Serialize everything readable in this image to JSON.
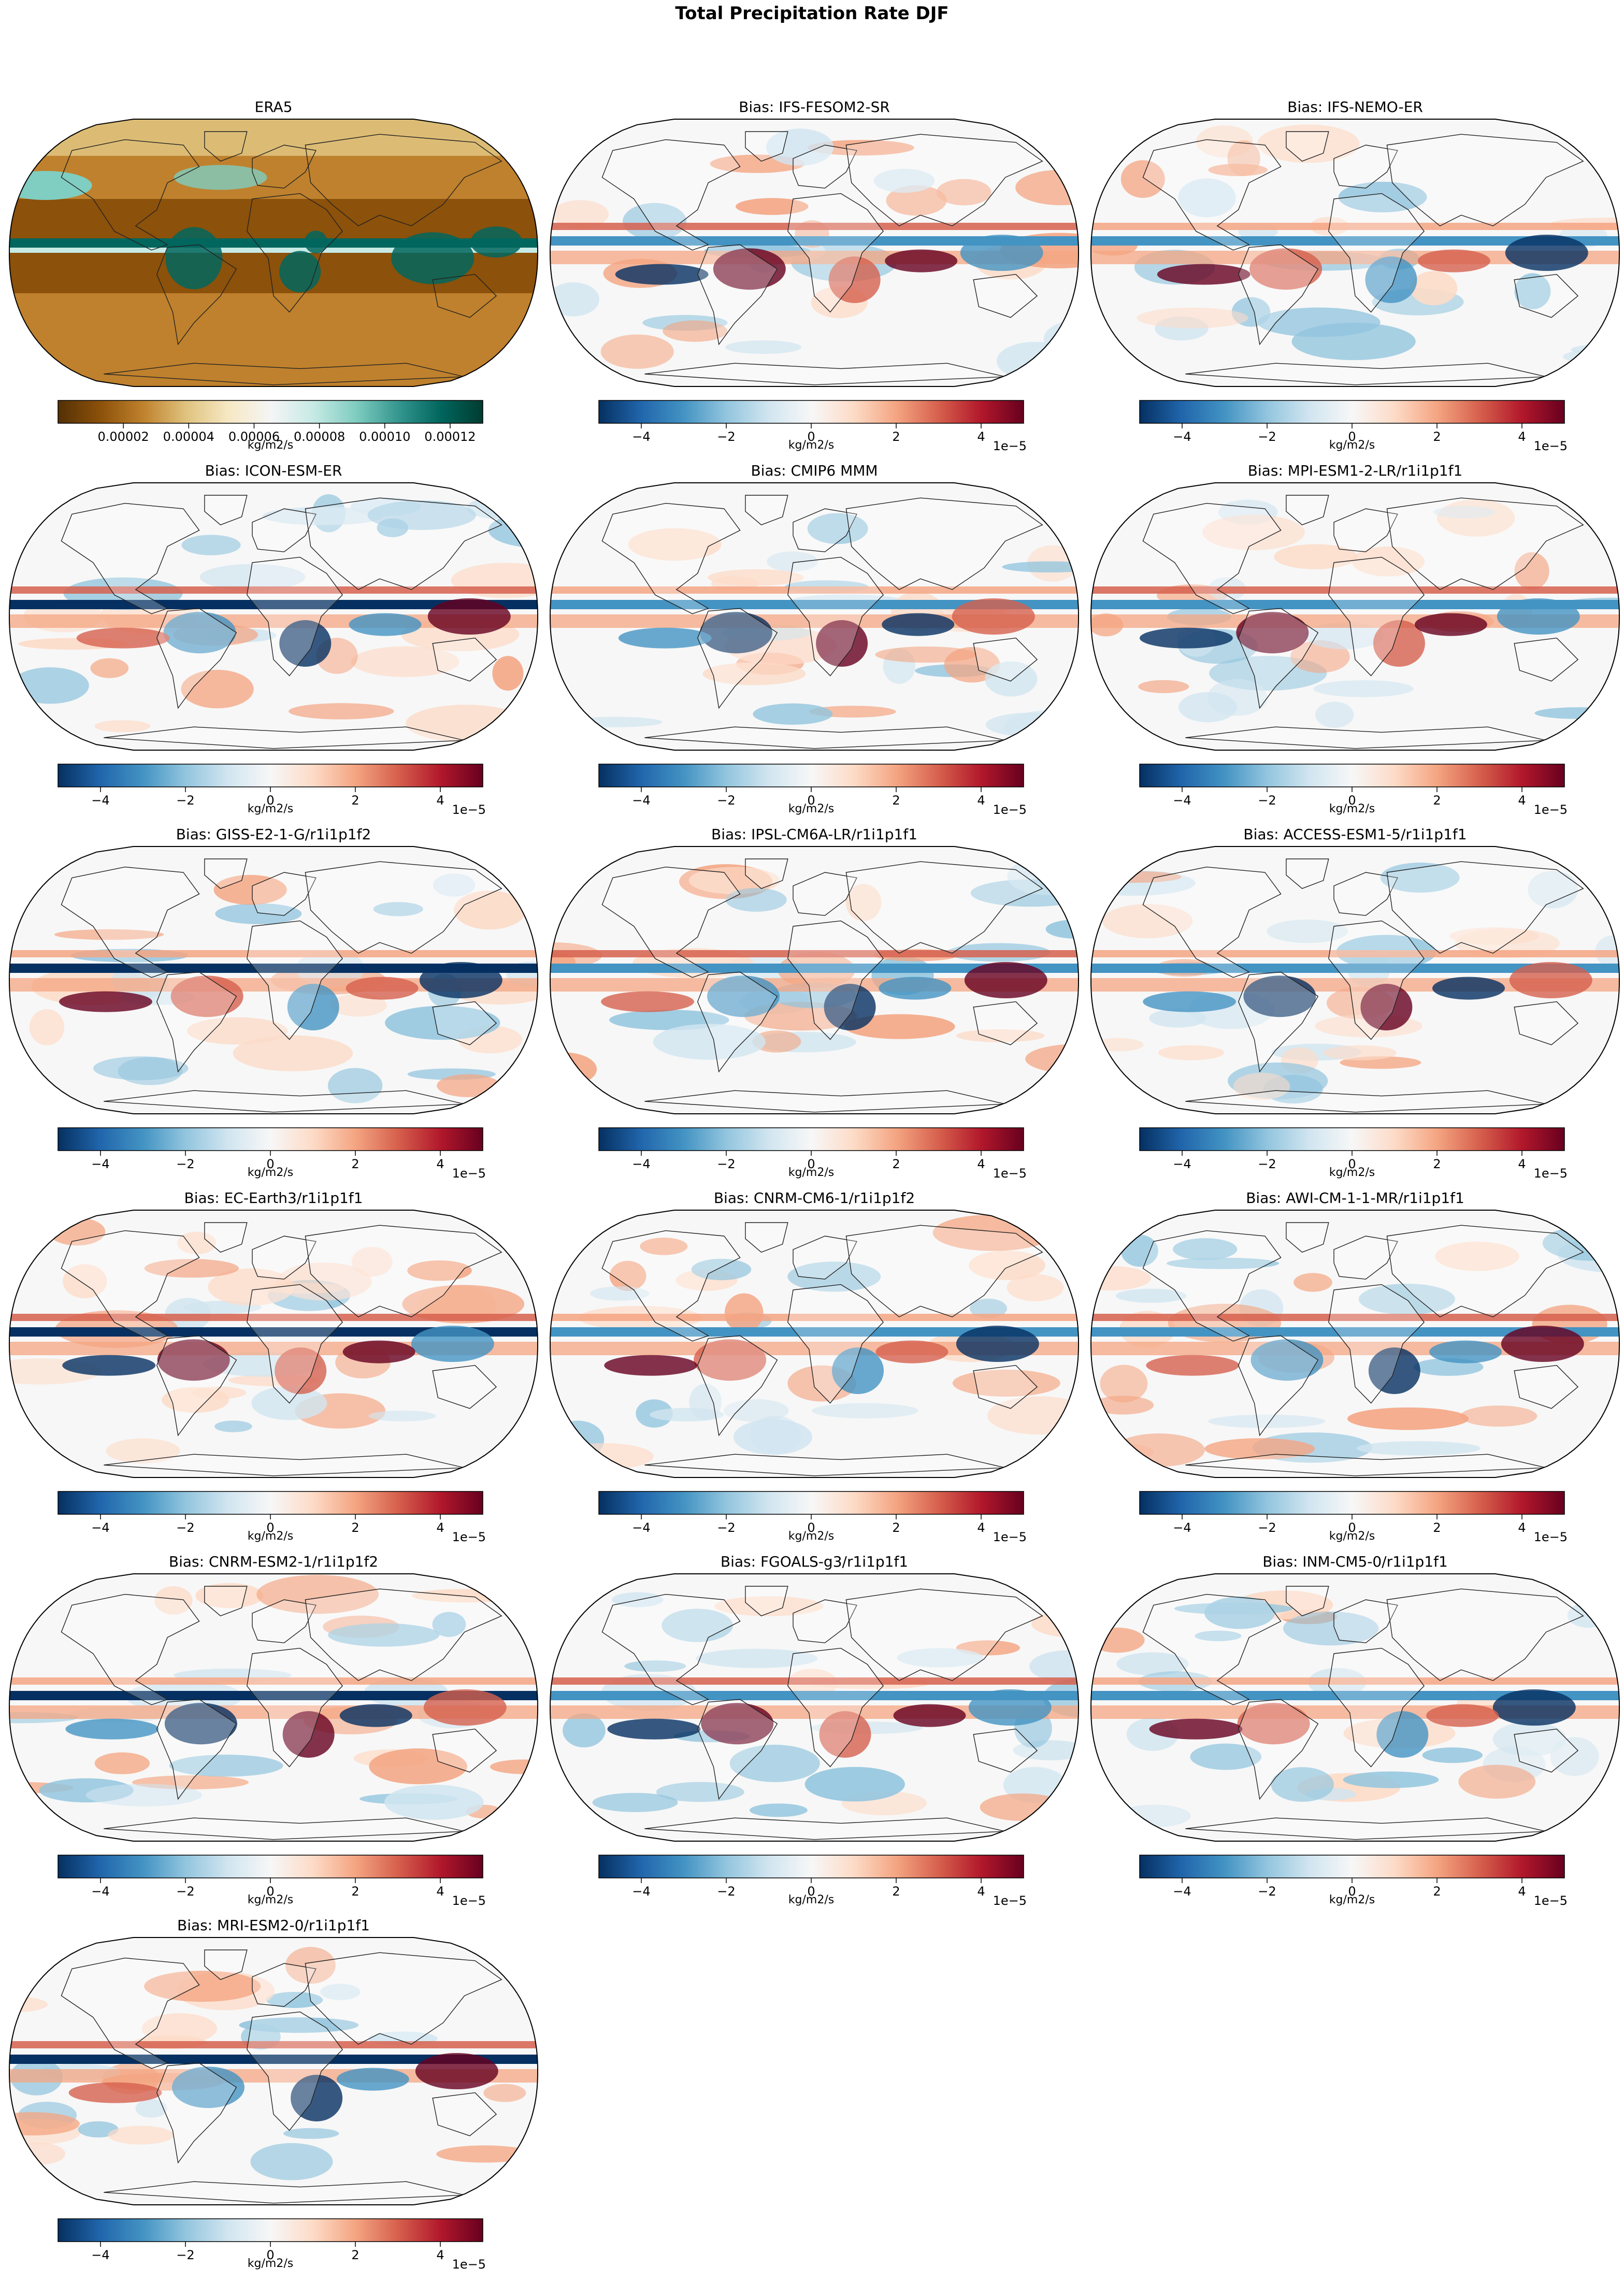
{
  "figure": {
    "title": "Total Precipitation Rate DJF"
  },
  "colormaps": {
    "BrBG": [
      "#543005",
      "#8c510a",
      "#bf812d",
      "#dfc27d",
      "#f6e8c3",
      "#f5f5f5",
      "#c7eae5",
      "#80cdc1",
      "#35978f",
      "#01665e",
      "#003c30"
    ],
    "RdBu_r": [
      "#053061",
      "#2166ac",
      "#4393c3",
      "#92c5de",
      "#d1e5f0",
      "#f7f7f7",
      "#fddbc7",
      "#f4a582",
      "#d6604d",
      "#b2182b",
      "#67001f"
    ]
  },
  "chart_data": [
    {
      "type": "heatmap",
      "title": "ERA5",
      "colormap": "BrBG",
      "colorbar": {
        "range": [
          0.0,
          0.00013
        ],
        "ticks": [
          2e-05,
          4e-05,
          6e-05,
          8e-05,
          0.0001,
          0.00012
        ],
        "tick_labels": [
          "0.00002",
          "0.00004",
          "0.00006",
          "0.00008",
          "0.00010",
          "0.00012"
        ],
        "label": "kg/m2/s",
        "offset_label": ""
      }
    },
    {
      "type": "heatmap",
      "title": "Bias: IFS-FESOM2-SR",
      "colormap": "RdBu_r",
      "colorbar": {
        "range": [
          -5,
          5
        ],
        "ticks": [
          -4,
          -2,
          0,
          2,
          4
        ],
        "tick_labels": [
          "−4",
          "−2",
          "0",
          "2",
          "4"
        ],
        "label": "kg/m2/s",
        "offset_label": "1e−5"
      }
    },
    {
      "type": "heatmap",
      "title": "Bias: IFS-NEMO-ER",
      "colormap": "RdBu_r",
      "colorbar": {
        "range": [
          -5,
          5
        ],
        "ticks": [
          -4,
          -2,
          0,
          2,
          4
        ],
        "tick_labels": [
          "−4",
          "−2",
          "0",
          "2",
          "4"
        ],
        "label": "kg/m2/s",
        "offset_label": "1e−5"
      }
    },
    {
      "type": "heatmap",
      "title": "Bias: ICON-ESM-ER",
      "colormap": "RdBu_r",
      "colorbar": {
        "range": [
          -5,
          5
        ],
        "ticks": [
          -4,
          -2,
          0,
          2,
          4
        ],
        "tick_labels": [
          "−4",
          "−2",
          "0",
          "2",
          "4"
        ],
        "label": "kg/m2/s",
        "offset_label": "1e−5"
      }
    },
    {
      "type": "heatmap",
      "title": "Bias: CMIP6 MMM",
      "colormap": "RdBu_r",
      "colorbar": {
        "range": [
          -5,
          5
        ],
        "ticks": [
          -4,
          -2,
          0,
          2,
          4
        ],
        "tick_labels": [
          "−4",
          "−2",
          "0",
          "2",
          "4"
        ],
        "label": "kg/m2/s",
        "offset_label": "1e−5"
      }
    },
    {
      "type": "heatmap",
      "title": "Bias: MPI-ESM1-2-LR/r1i1p1f1",
      "colormap": "RdBu_r",
      "colorbar": {
        "range": [
          -5,
          5
        ],
        "ticks": [
          -4,
          -2,
          0,
          2,
          4
        ],
        "tick_labels": [
          "−4",
          "−2",
          "0",
          "2",
          "4"
        ],
        "label": "kg/m2/s",
        "offset_label": "1e−5"
      }
    },
    {
      "type": "heatmap",
      "title": "Bias: GISS-E2-1-G/r1i1p1f2",
      "colormap": "RdBu_r",
      "colorbar": {
        "range": [
          -5,
          5
        ],
        "ticks": [
          -4,
          -2,
          0,
          2,
          4
        ],
        "tick_labels": [
          "−4",
          "−2",
          "0",
          "2",
          "4"
        ],
        "label": "kg/m2/s",
        "offset_label": "1e−5"
      }
    },
    {
      "type": "heatmap",
      "title": "Bias: IPSL-CM6A-LR/r1i1p1f1",
      "colormap": "RdBu_r",
      "colorbar": {
        "range": [
          -5,
          5
        ],
        "ticks": [
          -4,
          -2,
          0,
          2,
          4
        ],
        "tick_labels": [
          "−4",
          "−2",
          "0",
          "2",
          "4"
        ],
        "label": "kg/m2/s",
        "offset_label": "1e−5"
      }
    },
    {
      "type": "heatmap",
      "title": "Bias: ACCESS-ESM1-5/r1i1p1f1",
      "colormap": "RdBu_r",
      "colorbar": {
        "range": [
          -5,
          5
        ],
        "ticks": [
          -4,
          -2,
          0,
          2,
          4
        ],
        "tick_labels": [
          "−4",
          "−2",
          "0",
          "2",
          "4"
        ],
        "label": "kg/m2/s",
        "offset_label": "1e−5"
      }
    },
    {
      "type": "heatmap",
      "title": "Bias: EC-Earth3/r1i1p1f1",
      "colormap": "RdBu_r",
      "colorbar": {
        "range": [
          -5,
          5
        ],
        "ticks": [
          -4,
          -2,
          0,
          2,
          4
        ],
        "tick_labels": [
          "−4",
          "−2",
          "0",
          "2",
          "4"
        ],
        "label": "kg/m2/s",
        "offset_label": "1e−5"
      }
    },
    {
      "type": "heatmap",
      "title": "Bias: CNRM-CM6-1/r1i1p1f2",
      "colormap": "RdBu_r",
      "colorbar": {
        "range": [
          -5,
          5
        ],
        "ticks": [
          -4,
          -2,
          0,
          2,
          4
        ],
        "tick_labels": [
          "−4",
          "−2",
          "0",
          "2",
          "4"
        ],
        "label": "kg/m2/s",
        "offset_label": "1e−5"
      }
    },
    {
      "type": "heatmap",
      "title": "Bias: AWI-CM-1-1-MR/r1i1p1f1",
      "colormap": "RdBu_r",
      "colorbar": {
        "range": [
          -5,
          5
        ],
        "ticks": [
          -4,
          -2,
          0,
          2,
          4
        ],
        "tick_labels": [
          "−4",
          "−2",
          "0",
          "2",
          "4"
        ],
        "label": "kg/m2/s",
        "offset_label": "1e−5"
      }
    },
    {
      "type": "heatmap",
      "title": "Bias: CNRM-ESM2-1/r1i1p1f2",
      "colormap": "RdBu_r",
      "colorbar": {
        "range": [
          -5,
          5
        ],
        "ticks": [
          -4,
          -2,
          0,
          2,
          4
        ],
        "tick_labels": [
          "−4",
          "−2",
          "0",
          "2",
          "4"
        ],
        "label": "kg/m2/s",
        "offset_label": "1e−5"
      }
    },
    {
      "type": "heatmap",
      "title": "Bias: FGOALS-g3/r1i1p1f1",
      "colormap": "RdBu_r",
      "colorbar": {
        "range": [
          -5,
          5
        ],
        "ticks": [
          -4,
          -2,
          0,
          2,
          4
        ],
        "tick_labels": [
          "−4",
          "−2",
          "0",
          "2",
          "4"
        ],
        "label": "kg/m2/s",
        "offset_label": "1e−5"
      }
    },
    {
      "type": "heatmap",
      "title": "Bias: INM-CM5-0/r1i1p1f1",
      "colormap": "RdBu_r",
      "colorbar": {
        "range": [
          -5,
          5
        ],
        "ticks": [
          -4,
          -2,
          0,
          2,
          4
        ],
        "tick_labels": [
          "−4",
          "−2",
          "0",
          "2",
          "4"
        ],
        "label": "kg/m2/s",
        "offset_label": "1e−5"
      }
    },
    {
      "type": "heatmap",
      "title": "Bias: MRI-ESM2-0/r1i1p1f1",
      "colormap": "RdBu_r",
      "colorbar": {
        "range": [
          -5,
          5
        ],
        "ticks": [
          -4,
          -2,
          0,
          2,
          4
        ],
        "tick_labels": [
          "−4",
          "−2",
          "0",
          "2",
          "4"
        ],
        "label": "kg/m2/s",
        "offset_label": "1e−5"
      }
    }
  ]
}
